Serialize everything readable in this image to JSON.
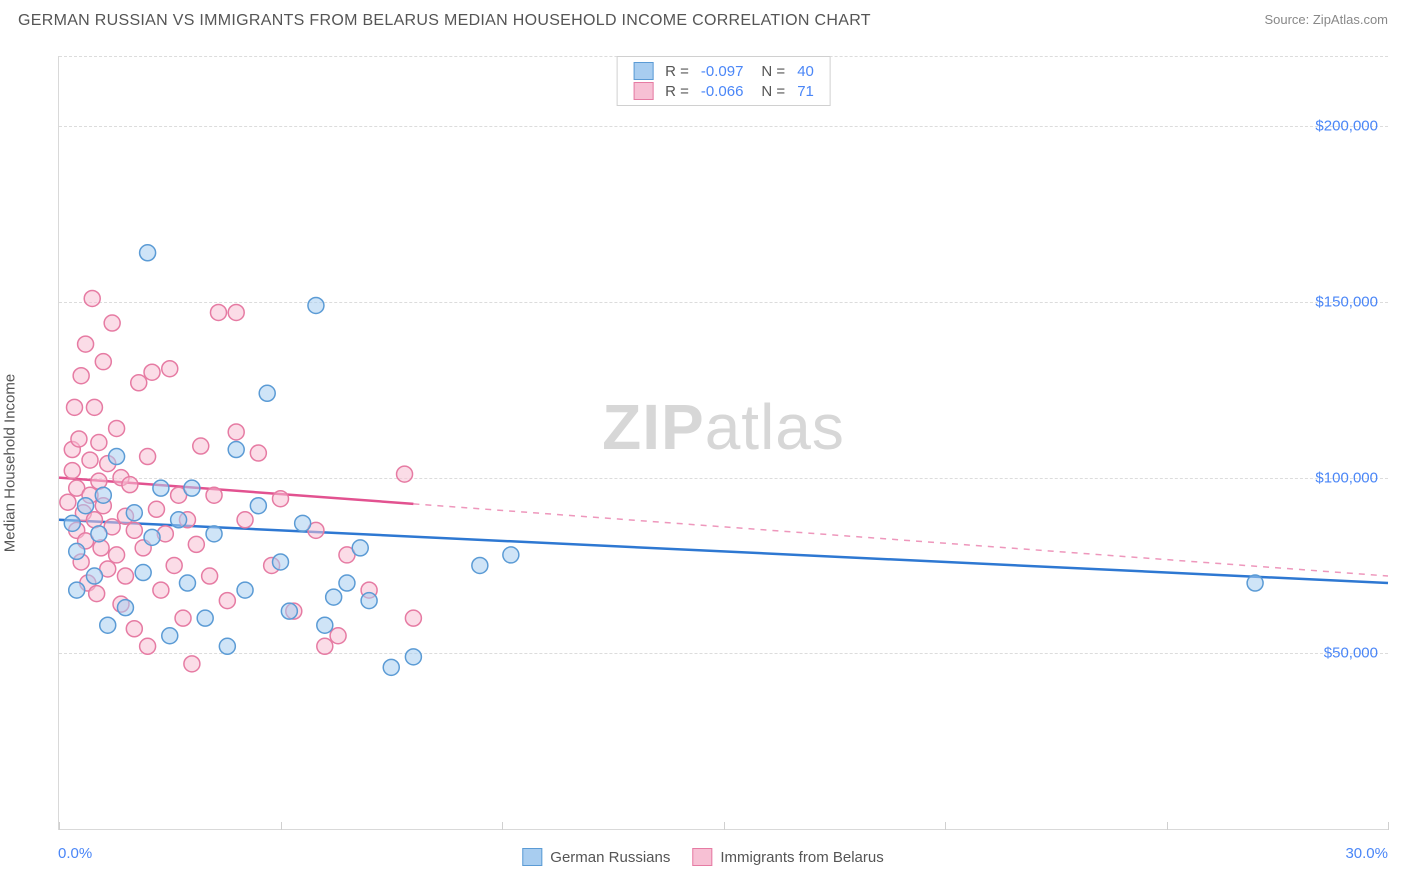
{
  "header": {
    "title": "GERMAN RUSSIAN VS IMMIGRANTS FROM BELARUS MEDIAN HOUSEHOLD INCOME CORRELATION CHART",
    "source": "Source: ZipAtlas.com"
  },
  "ylabel": "Median Household Income",
  "watermark": {
    "a": "ZIP",
    "b": "atlas"
  },
  "chart": {
    "type": "scatter",
    "xlim": [
      0,
      30
    ],
    "ylim": [
      0,
      220000
    ],
    "y_ticks": [
      50000,
      100000,
      150000,
      200000
    ],
    "y_tick_labels": [
      "$50,000",
      "$100,000",
      "$150,000",
      "$200,000"
    ],
    "y_tick_color": "#4a86f7",
    "x_axis_labels": {
      "left": "0.0%",
      "right": "30.0%"
    },
    "x_label_color": "#4a86f7",
    "x_tick_positions": [
      0,
      5,
      10,
      15,
      20,
      25,
      30
    ],
    "grid_color": "#dcdcdc",
    "background_color": "#ffffff",
    "marker_radius": 8,
    "marker_opacity": 0.55,
    "series": [
      {
        "name": "German Russians",
        "stroke": "#5b9bd5",
        "fill": "#a8cdf0",
        "line_color": "#2e78d2",
        "R": "-0.097",
        "N": "40",
        "points": [
          [
            0.3,
            87000
          ],
          [
            0.4,
            79000
          ],
          [
            0.4,
            68000
          ],
          [
            0.6,
            92000
          ],
          [
            0.8,
            72000
          ],
          [
            0.9,
            84000
          ],
          [
            1.0,
            95000
          ],
          [
            1.1,
            58000
          ],
          [
            1.3,
            106000
          ],
          [
            1.5,
            63000
          ],
          [
            1.7,
            90000
          ],
          [
            1.9,
            73000
          ],
          [
            2.0,
            164000
          ],
          [
            2.1,
            83000
          ],
          [
            2.3,
            97000
          ],
          [
            2.5,
            55000
          ],
          [
            2.7,
            88000
          ],
          [
            2.9,
            70000
          ],
          [
            3.0,
            97000
          ],
          [
            3.3,
            60000
          ],
          [
            3.5,
            84000
          ],
          [
            3.8,
            52000
          ],
          [
            4.0,
            108000
          ],
          [
            4.2,
            68000
          ],
          [
            4.5,
            92000
          ],
          [
            4.7,
            124000
          ],
          [
            5.0,
            76000
          ],
          [
            5.2,
            62000
          ],
          [
            5.5,
            87000
          ],
          [
            5.8,
            149000
          ],
          [
            6.0,
            58000
          ],
          [
            6.2,
            66000
          ],
          [
            6.5,
            70000
          ],
          [
            6.8,
            80000
          ],
          [
            7.0,
            65000
          ],
          [
            7.5,
            46000
          ],
          [
            8.0,
            49000
          ],
          [
            9.5,
            75000
          ],
          [
            10.2,
            78000
          ],
          [
            27.0,
            70000
          ]
        ],
        "trend": {
          "x1": 0,
          "y1": 88000,
          "x2": 30,
          "y2": 70000,
          "dash_from_x": 30
        }
      },
      {
        "name": "Immigrants from Belarus",
        "stroke": "#e67ba3",
        "fill": "#f7c0d4",
        "line_color": "#e25290",
        "R": "-0.066",
        "N": "71",
        "points": [
          [
            0.2,
            93000
          ],
          [
            0.3,
            108000
          ],
          [
            0.3,
            102000
          ],
          [
            0.35,
            120000
          ],
          [
            0.4,
            85000
          ],
          [
            0.4,
            97000
          ],
          [
            0.45,
            111000
          ],
          [
            0.5,
            76000
          ],
          [
            0.5,
            129000
          ],
          [
            0.55,
            90000
          ],
          [
            0.6,
            82000
          ],
          [
            0.6,
            138000
          ],
          [
            0.65,
            70000
          ],
          [
            0.7,
            105000
          ],
          [
            0.7,
            95000
          ],
          [
            0.75,
            151000
          ],
          [
            0.8,
            88000
          ],
          [
            0.8,
            120000
          ],
          [
            0.85,
            67000
          ],
          [
            0.9,
            99000
          ],
          [
            0.9,
            110000
          ],
          [
            0.95,
            80000
          ],
          [
            1.0,
            133000
          ],
          [
            1.0,
            92000
          ],
          [
            1.1,
            74000
          ],
          [
            1.1,
            104000
          ],
          [
            1.2,
            86000
          ],
          [
            1.2,
            144000
          ],
          [
            1.3,
            78000
          ],
          [
            1.3,
            114000
          ],
          [
            1.4,
            64000
          ],
          [
            1.4,
            100000
          ],
          [
            1.5,
            89000
          ],
          [
            1.5,
            72000
          ],
          [
            1.6,
            98000
          ],
          [
            1.7,
            57000
          ],
          [
            1.7,
            85000
          ],
          [
            1.8,
            127000
          ],
          [
            1.9,
            80000
          ],
          [
            2.0,
            106000
          ],
          [
            2.0,
            52000
          ],
          [
            2.1,
            130000
          ],
          [
            2.2,
            91000
          ],
          [
            2.3,
            68000
          ],
          [
            2.4,
            84000
          ],
          [
            2.5,
            131000
          ],
          [
            2.6,
            75000
          ],
          [
            2.7,
            95000
          ],
          [
            2.8,
            60000
          ],
          [
            2.9,
            88000
          ],
          [
            3.0,
            47000
          ],
          [
            3.1,
            81000
          ],
          [
            3.2,
            109000
          ],
          [
            3.4,
            72000
          ],
          [
            3.5,
            95000
          ],
          [
            3.6,
            147000
          ],
          [
            3.8,
            65000
          ],
          [
            4.0,
            147000
          ],
          [
            4.0,
            113000
          ],
          [
            4.2,
            88000
          ],
          [
            4.5,
            107000
          ],
          [
            4.8,
            75000
          ],
          [
            5.0,
            94000
          ],
          [
            5.3,
            62000
          ],
          [
            5.8,
            85000
          ],
          [
            6.0,
            52000
          ],
          [
            6.3,
            55000
          ],
          [
            6.5,
            78000
          ],
          [
            7.0,
            68000
          ],
          [
            7.8,
            101000
          ],
          [
            8.0,
            60000
          ]
        ],
        "trend": {
          "x1": 0,
          "y1": 100000,
          "x2": 30,
          "y2": 72000,
          "dash_from_x": 8
        }
      }
    ]
  },
  "legend_top": {
    "R_label": "R =",
    "N_label": "N =",
    "text_color": "#555",
    "value_color": "#4a86f7"
  },
  "legend_bottom": {
    "items": [
      {
        "label": "German Russians",
        "fill": "#a8cdf0",
        "stroke": "#5b9bd5"
      },
      {
        "label": "Immigrants from Belarus",
        "fill": "#f7c0d4",
        "stroke": "#e67ba3"
      }
    ]
  }
}
